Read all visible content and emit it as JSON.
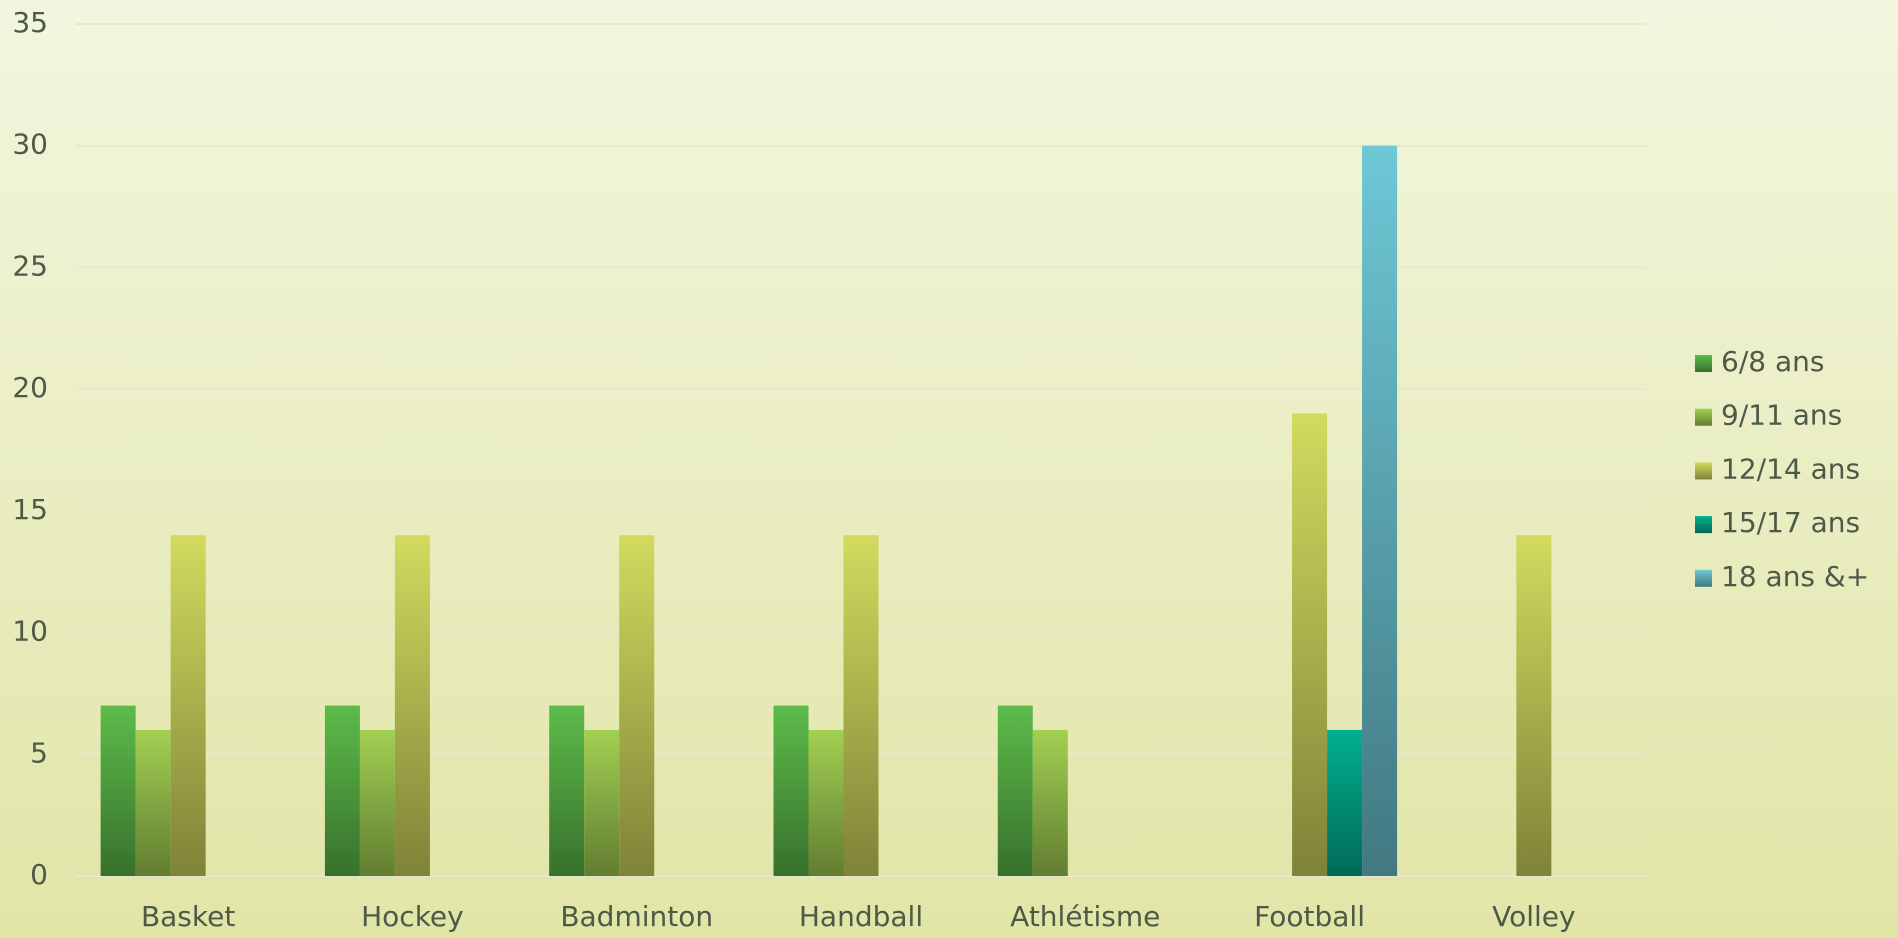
{
  "chart_data": {
    "type": "bar",
    "categories": [
      "Basket",
      "Hockey",
      "Badminton",
      "Handball",
      "Athlétisme",
      "Football",
      "Volley"
    ],
    "series": [
      {
        "name": "6/8 ans",
        "color": "#5dbb4a",
        "values": [
          7,
          7,
          7,
          7,
          7,
          null,
          null
        ]
      },
      {
        "name": "9/11 ans",
        "color": "#a2d052",
        "values": [
          6,
          6,
          6,
          6,
          6,
          null,
          null
        ]
      },
      {
        "name": "12/14 ans",
        "color": "#d2da5e",
        "values": [
          14,
          14,
          14,
          14,
          null,
          19,
          14
        ]
      },
      {
        "name": "15/17 ans",
        "color": "#00b090",
        "values": [
          null,
          null,
          null,
          null,
          null,
          6,
          null
        ]
      },
      {
        "name": "18 ans &+",
        "color": "#6ec8d6",
        "values": [
          null,
          null,
          null,
          null,
          null,
          30,
          null
        ]
      }
    ],
    "ylim": [
      0,
      35
    ],
    "yticks": [
      0,
      5,
      10,
      15,
      20,
      25,
      30,
      35
    ],
    "grid": true,
    "legend": "right"
  }
}
